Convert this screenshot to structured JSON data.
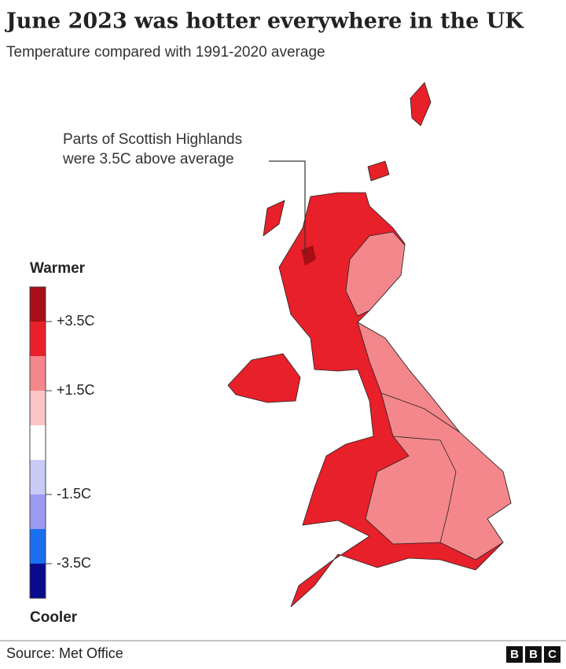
{
  "header": {
    "title": "June 2023 was hotter everywhere in the UK",
    "subtitle": "Temperature compared with 1991-2020 average"
  },
  "annotation": [
    "Parts of Scottish Highlands",
    "were 3.5C above average"
  ],
  "legend": {
    "top": "Warmer",
    "bottom": "Cooler",
    "labels": [
      "+3.5C",
      "+1.5C",
      "-1.5C",
      "-3.5C"
    ],
    "colors": [
      "#a50f15",
      "#e8202a",
      "#f4878b",
      "#fbc4c6",
      "#ffffff",
      "#cacaf6",
      "#9a9af2",
      "#1a6ef0",
      "#0a0a8c"
    ]
  },
  "footer": {
    "source": "Source: Met Office",
    "logo": [
      "B",
      "B",
      "C"
    ]
  }
}
